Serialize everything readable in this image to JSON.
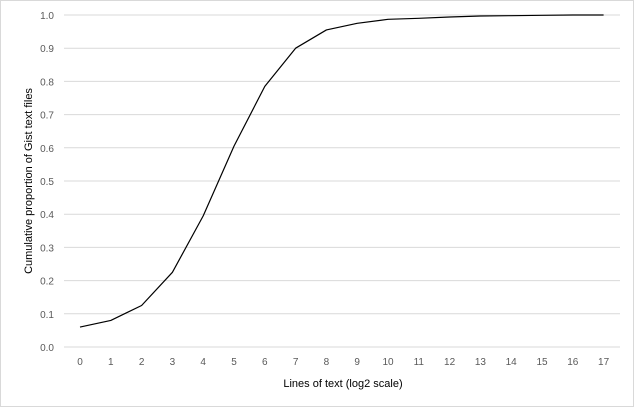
{
  "chart_data": {
    "type": "line",
    "title": "",
    "xlabel": "Lines of text (log2 scale)",
    "ylabel": "Cumulative proportion of Gist text files",
    "x": [
      0,
      1,
      2,
      3,
      4,
      5,
      6,
      7,
      8,
      9,
      10,
      11,
      12,
      13,
      14,
      15,
      16,
      17
    ],
    "x_tick_labels": [
      "0",
      "1",
      "2",
      "3",
      "4",
      "5",
      "6",
      "7",
      "8",
      "9",
      "10",
      "11",
      "12",
      "13",
      "14",
      "15",
      "16",
      "17"
    ],
    "y_tick_labels": [
      "0.0",
      "0.1",
      "0.2",
      "0.3",
      "0.4",
      "0.5",
      "0.6",
      "0.7",
      "0.8",
      "0.9",
      "1.0"
    ],
    "ylim": [
      0,
      1.0
    ],
    "grid": "horizontal",
    "legend": "none",
    "series": [
      {
        "values": [
          0.06,
          0.08,
          0.125,
          0.225,
          0.395,
          0.605,
          0.785,
          0.9,
          0.955,
          0.975,
          0.987,
          0.99,
          0.994,
          0.997,
          0.998,
          0.999,
          1.0,
          1.0
        ],
        "color": "#000000"
      }
    ],
    "colors": {
      "gridline": "#d9d9d9",
      "axis_line": "#d9d9d9",
      "tick_text": "#595959"
    }
  }
}
